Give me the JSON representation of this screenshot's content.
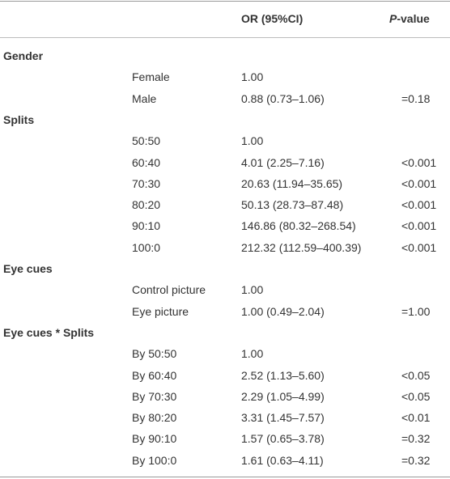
{
  "header": {
    "or": "OR (95%CI)",
    "p_italic": "P",
    "p_rest": "-value"
  },
  "groups": [
    {
      "label": "Gender",
      "rows": [
        [
          "Female",
          "1.00"
        ],
        [
          "Male",
          "0.88 (0.73–1.06)",
          "=0.18"
        ]
      ]
    },
    {
      "label": "Splits",
      "rows": [
        [
          "50:50",
          "1.00"
        ],
        [
          "60:40",
          "4.01 (2.25–7.16)",
          "<0.001"
        ],
        [
          "70:30",
          "20.63 (11.94–35.65)",
          "<0.001"
        ],
        [
          "80:20",
          "50.13 (28.73–87.48)",
          "<0.001"
        ],
        [
          "90:10",
          "146.86 (80.32–268.54)",
          "<0.001"
        ],
        [
          "100:0",
          "212.32 (112.59–400.39)",
          "<0.001"
        ]
      ]
    },
    {
      "label": "Eye cues",
      "rows": [
        [
          "Control picture",
          "1.00"
        ],
        [
          "Eye picture",
          "1.00 (0.49–2.04)",
          "=1.00"
        ]
      ]
    },
    {
      "label": "Eye cues * Splits",
      "rows": [
        [
          "By 50:50",
          "1.00"
        ],
        [
          "By 60:40",
          "2.52 (1.13–5.60)",
          "<0.05"
        ],
        [
          "By 70:30",
          "2.29 (1.05–4.99)",
          "<0.05"
        ],
        [
          "By 80:20",
          "3.31 (1.45–7.57)",
          "<0.01"
        ],
        [
          "By 90:10",
          "1.57 (0.65–3.78)",
          "=0.32"
        ],
        [
          "By 100:0",
          "1.61 (0.63–4.11)",
          "=0.32"
        ]
      ]
    }
  ]
}
